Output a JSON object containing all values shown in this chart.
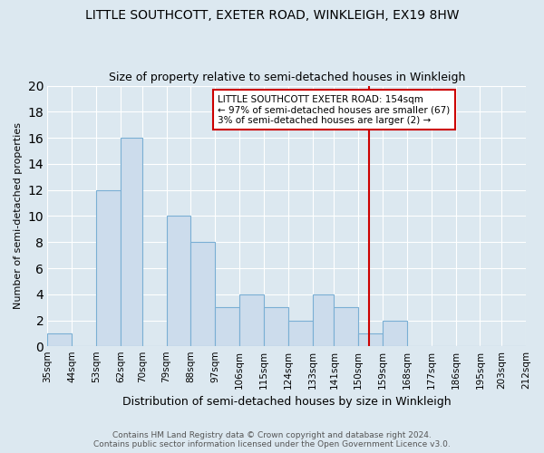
{
  "title": "LITTLE SOUTHCOTT, EXETER ROAD, WINKLEIGH, EX19 8HW",
  "subtitle": "Size of property relative to semi-detached houses in Winkleigh",
  "xlabel": "Distribution of semi-detached houses by size in Winkleigh",
  "ylabel": "Number of semi-detached properties",
  "bin_edges": [
    35,
    44,
    53,
    62,
    70,
    79,
    88,
    97,
    106,
    115,
    124,
    133,
    141,
    150,
    159,
    168,
    177,
    186,
    195,
    203,
    212
  ],
  "bin_labels": [
    "35sqm",
    "44sqm",
    "53sqm",
    "62sqm",
    "70sqm",
    "79sqm",
    "88sqm",
    "97sqm",
    "106sqm",
    "115sqm",
    "124sqm",
    "133sqm",
    "141sqm",
    "150sqm",
    "159sqm",
    "168sqm",
    "177sqm",
    "186sqm",
    "195sqm",
    "203sqm",
    "212sqm"
  ],
  "values": [
    1,
    0,
    12,
    16,
    0,
    10,
    8,
    3,
    4,
    3,
    2,
    4,
    3,
    1,
    2,
    0,
    0,
    0,
    0,
    0
  ],
  "bar_color": "#ccdcec",
  "bar_edge_color": "#7aafd4",
  "ylim": [
    0,
    20
  ],
  "yticks": [
    0,
    2,
    4,
    6,
    8,
    10,
    12,
    14,
    16,
    18,
    20
  ],
  "vline_x": 154,
  "vline_color": "#cc0000",
  "annotation_text": "LITTLE SOUTHCOTT EXETER ROAD: 154sqm\n← 97% of semi-detached houses are smaller (67)\n3% of semi-detached houses are larger (2) →",
  "annotation_box_color": "#ffffff",
  "annotation_box_edge_color": "#cc0000",
  "footer_text": "Contains HM Land Registry data © Crown copyright and database right 2024.\nContains public sector information licensed under the Open Government Licence v3.0.",
  "background_color": "#dce8f0",
  "plot_background_color": "#dce8f0",
  "grid_color": "#ffffff",
  "title_fontsize": 10,
  "subtitle_fontsize": 9
}
